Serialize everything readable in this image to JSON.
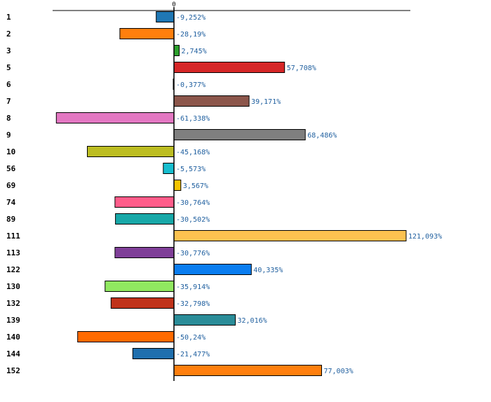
{
  "chart_data": {
    "type": "bar",
    "orientation": "horizontal",
    "title": "",
    "xlabel": "",
    "ylabel": "",
    "zero_tick_label": "0",
    "xlim": [
      -90,
      130
    ],
    "grid": false,
    "categories": [
      "1",
      "2",
      "3",
      "5",
      "6",
      "7",
      "8",
      "9",
      "10",
      "56",
      "69",
      "74",
      "89",
      "111",
      "113",
      "122",
      "130",
      "132",
      "139",
      "140",
      "144",
      "152"
    ],
    "values": [
      -9.252,
      -28.19,
      2.745,
      57.708,
      -0.377,
      39.171,
      -61.338,
      68.486,
      -45.168,
      -5.573,
      3.567,
      -30.764,
      -30.502,
      121.093,
      -30.776,
      40.335,
      -35.914,
      -32.798,
      32.016,
      -50.24,
      -21.477,
      77.003
    ],
    "value_labels": [
      "-9,252%",
      "-28,19%",
      "2,745%",
      "57,708%",
      "-0,377%",
      "39,171%",
      "-61,338%",
      "68,486%",
      "-45,168%",
      "-5,573%",
      "3,567%",
      "-30,764%",
      "-30,502%",
      "121,093%",
      "-30,776%",
      "40,335%",
      "-35,914%",
      "-32,798%",
      "32,016%",
      "-50,24%",
      "-21,477%",
      "77,003%"
    ],
    "colors": [
      "#1f77b4",
      "#ff7f0e",
      "#2ca02c",
      "#d62728",
      "#000000",
      "#8c564b",
      "#e377c2",
      "#7f7f7f",
      "#bcbd22",
      "#17becf",
      "#f5c400",
      "#ff5c8a",
      "#17a8a8",
      "#fcc250",
      "#7f3f98",
      "#0a7df0",
      "#90e860",
      "#c0321a",
      "#2a8c98",
      "#ff6a00",
      "#1f6fae",
      "#ff7f0e"
    ]
  }
}
